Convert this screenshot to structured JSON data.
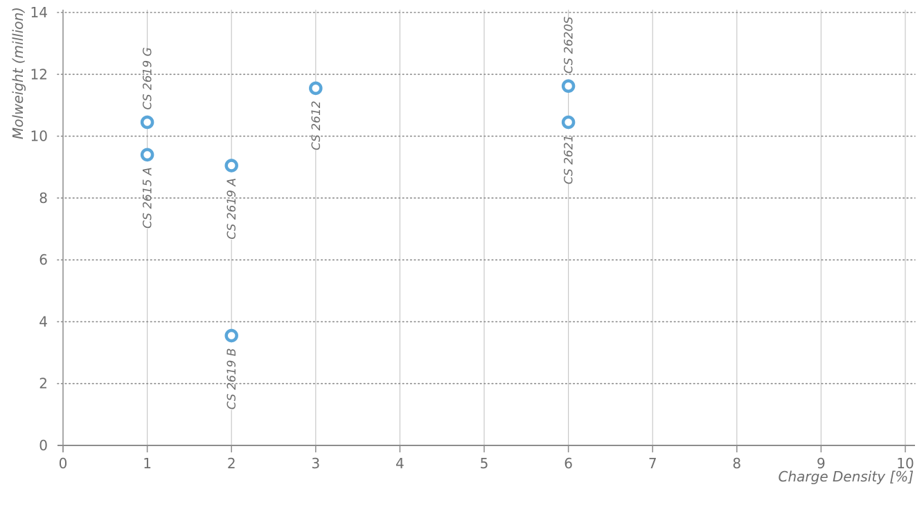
{
  "chart_data": {
    "type": "scatter",
    "title": "",
    "xlabel": "Charge Density [%]",
    "ylabel": "Molweight (million)",
    "xlim": [
      0,
      10
    ],
    "ylim": [
      0,
      14
    ],
    "x_ticks": [
      0,
      1,
      2,
      3,
      4,
      5,
      6,
      7,
      8,
      9,
      10
    ],
    "y_ticks": [
      0,
      2,
      4,
      6,
      8,
      10,
      12,
      14
    ],
    "x_tick_labels": [
      "0",
      "1",
      "2",
      "3",
      "4",
      "5",
      "6",
      "7",
      "8",
      "9",
      "10"
    ],
    "y_tick_labels": [
      "0",
      "2",
      "4",
      "6",
      "8",
      "10",
      "12",
      "14"
    ],
    "vertical_grid": "solid",
    "horizontal_grid": "dotted",
    "marker": "hollow-circle",
    "points": [
      {
        "label": "CS 2619 G",
        "x": 1,
        "y": 10.45,
        "label_position": "above"
      },
      {
        "label": "CS 2615 A",
        "x": 1,
        "y": 9.4,
        "label_position": "below"
      },
      {
        "label": "CS 2619 A",
        "x": 2,
        "y": 9.05,
        "label_position": "below"
      },
      {
        "label": "CS 2619 B",
        "x": 2,
        "y": 3.55,
        "label_position": "below"
      },
      {
        "label": "CS 2612",
        "x": 3,
        "y": 11.55,
        "label_position": "below"
      },
      {
        "label": "CS 2620S",
        "x": 6,
        "y": 11.62,
        "label_position": "above"
      },
      {
        "label": "CS 2621",
        "x": 6,
        "y": 10.45,
        "label_position": "below"
      }
    ]
  },
  "colors": {
    "point": "#5aa6d9",
    "grid": "#c8c8c8",
    "axis": "#8c8c8c",
    "text": "#6d6d6d"
  }
}
